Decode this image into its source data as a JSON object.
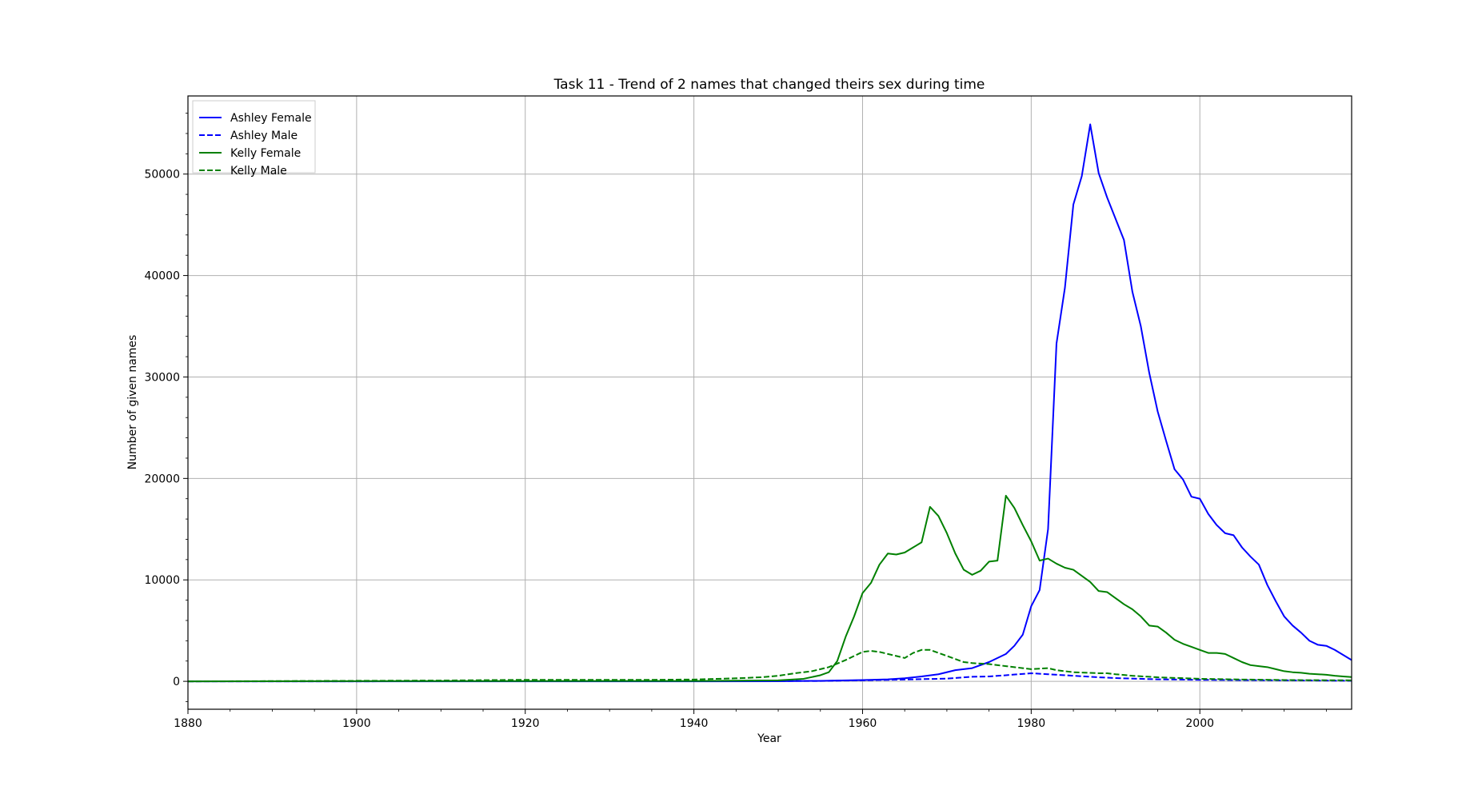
{
  "chart_data": {
    "type": "line",
    "title": "Task 11 - Trend of 2 names that changed theirs sex during time",
    "xlabel": "Year",
    "ylabel": "Number of given names",
    "xlim": [
      1880,
      2018
    ],
    "ylim": [
      -2750,
      57700
    ],
    "xticks": [
      1880,
      1900,
      1920,
      1940,
      1960,
      1980,
      2000
    ],
    "xtick_labels": [
      "1880",
      "1900",
      "1920",
      "1940",
      "1960",
      "1980",
      "2000"
    ],
    "yticks": [
      0,
      10000,
      20000,
      30000,
      40000,
      50000
    ],
    "ytick_labels": [
      "0",
      "10000",
      "20000",
      "30000",
      "40000",
      "50000"
    ],
    "grid": true,
    "legend_position": "upper-left",
    "series": [
      {
        "name": "Ashley Female",
        "color": "#0000ff",
        "dash": "solid",
        "points": [
          [
            1880,
            0
          ],
          [
            1940,
            0
          ],
          [
            1950,
            10
          ],
          [
            1955,
            50
          ],
          [
            1960,
            130
          ],
          [
            1963,
            200
          ],
          [
            1965,
            300
          ],
          [
            1967,
            480
          ],
          [
            1969,
            700
          ],
          [
            1971,
            1100
          ],
          [
            1973,
            1300
          ],
          [
            1975,
            1900
          ],
          [
            1977,
            2700
          ],
          [
            1978,
            3500
          ],
          [
            1979,
            4600
          ],
          [
            1980,
            7400
          ],
          [
            1981,
            9000
          ],
          [
            1982,
            15000
          ],
          [
            1983,
            33300
          ],
          [
            1984,
            38800
          ],
          [
            1985,
            47000
          ],
          [
            1986,
            49800
          ],
          [
            1987,
            54900
          ],
          [
            1988,
            50100
          ],
          [
            1989,
            47700
          ],
          [
            1990,
            45600
          ],
          [
            1991,
            43500
          ],
          [
            1992,
            38400
          ],
          [
            1993,
            35000
          ],
          [
            1994,
            30400
          ],
          [
            1995,
            26600
          ],
          [
            1996,
            23700
          ],
          [
            1997,
            20900
          ],
          [
            1998,
            19900
          ],
          [
            1999,
            18200
          ],
          [
            2000,
            18000
          ],
          [
            2001,
            16500
          ],
          [
            2002,
            15400
          ],
          [
            2003,
            14600
          ],
          [
            2004,
            14400
          ],
          [
            2005,
            13200
          ],
          [
            2006,
            12300
          ],
          [
            2007,
            11500
          ],
          [
            2008,
            9500
          ],
          [
            2009,
            7900
          ],
          [
            2010,
            6400
          ],
          [
            2011,
            5500
          ],
          [
            2012,
            4800
          ],
          [
            2013,
            4000
          ],
          [
            2014,
            3600
          ],
          [
            2015,
            3500
          ],
          [
            2016,
            3100
          ],
          [
            2017,
            2600
          ],
          [
            2018,
            2100
          ]
        ]
      },
      {
        "name": "Ashley Male",
        "color": "#0000ff",
        "dash": "dashed",
        "points": [
          [
            1880,
            0
          ],
          [
            1940,
            10
          ],
          [
            1955,
            40
          ],
          [
            1960,
            100
          ],
          [
            1965,
            180
          ],
          [
            1970,
            270
          ],
          [
            1973,
            450
          ],
          [
            1975,
            480
          ],
          [
            1977,
            600
          ],
          [
            1980,
            800
          ],
          [
            1982,
            700
          ],
          [
            1985,
            550
          ],
          [
            1988,
            400
          ],
          [
            1990,
            320
          ],
          [
            1995,
            200
          ],
          [
            2000,
            150
          ],
          [
            2005,
            120
          ],
          [
            2010,
            100
          ],
          [
            2018,
            60
          ]
        ]
      },
      {
        "name": "Kelly Female",
        "color": "#008000",
        "dash": "solid",
        "points": [
          [
            1880,
            0
          ],
          [
            1910,
            30
          ],
          [
            1940,
            40
          ],
          [
            1950,
            100
          ],
          [
            1953,
            250
          ],
          [
            1955,
            600
          ],
          [
            1956,
            900
          ],
          [
            1957,
            2000
          ],
          [
            1958,
            4400
          ],
          [
            1959,
            6400
          ],
          [
            1960,
            8700
          ],
          [
            1961,
            9700
          ],
          [
            1962,
            11500
          ],
          [
            1963,
            12600
          ],
          [
            1964,
            12500
          ],
          [
            1965,
            12700
          ],
          [
            1966,
            13200
          ],
          [
            1967,
            13700
          ],
          [
            1968,
            17200
          ],
          [
            1969,
            16300
          ],
          [
            1970,
            14600
          ],
          [
            1971,
            12600
          ],
          [
            1972,
            11000
          ],
          [
            1973,
            10500
          ],
          [
            1974,
            10900
          ],
          [
            1975,
            11800
          ],
          [
            1976,
            11900
          ],
          [
            1977,
            18300
          ],
          [
            1978,
            17100
          ],
          [
            1979,
            15400
          ],
          [
            1980,
            13800
          ],
          [
            1981,
            11900
          ],
          [
            1982,
            12100
          ],
          [
            1983,
            11600
          ],
          [
            1984,
            11200
          ],
          [
            1985,
            11000
          ],
          [
            1986,
            10400
          ],
          [
            1987,
            9800
          ],
          [
            1988,
            8900
          ],
          [
            1989,
            8800
          ],
          [
            1990,
            8200
          ],
          [
            1991,
            7600
          ],
          [
            1992,
            7100
          ],
          [
            1993,
            6400
          ],
          [
            1994,
            5500
          ],
          [
            1995,
            5400
          ],
          [
            1996,
            4800
          ],
          [
            1997,
            4100
          ],
          [
            1998,
            3700
          ],
          [
            1999,
            3400
          ],
          [
            2000,
            3100
          ],
          [
            2001,
            2800
          ],
          [
            2002,
            2800
          ],
          [
            2003,
            2700
          ],
          [
            2004,
            2300
          ],
          [
            2005,
            1900
          ],
          [
            2006,
            1600
          ],
          [
            2007,
            1500
          ],
          [
            2008,
            1400
          ],
          [
            2009,
            1200
          ],
          [
            2010,
            1000
          ],
          [
            2011,
            900
          ],
          [
            2012,
            850
          ],
          [
            2013,
            750
          ],
          [
            2014,
            700
          ],
          [
            2015,
            650
          ],
          [
            2016,
            550
          ],
          [
            2017,
            480
          ],
          [
            2018,
            420
          ]
        ]
      },
      {
        "name": "Kelly Male",
        "color": "#008000",
        "dash": "dashed",
        "points": [
          [
            1880,
            0
          ],
          [
            1910,
            80
          ],
          [
            1920,
            150
          ],
          [
            1935,
            150
          ],
          [
            1940,
            180
          ],
          [
            1945,
            300
          ],
          [
            1948,
            400
          ],
          [
            1950,
            550
          ],
          [
            1952,
            800
          ],
          [
            1954,
            1000
          ],
          [
            1956,
            1400
          ],
          [
            1958,
            2100
          ],
          [
            1959,
            2500
          ],
          [
            1960,
            2900
          ],
          [
            1961,
            3000
          ],
          [
            1962,
            2900
          ],
          [
            1963,
            2700
          ],
          [
            1964,
            2500
          ],
          [
            1965,
            2300
          ],
          [
            1966,
            2800
          ],
          [
            1967,
            3100
          ],
          [
            1968,
            3100
          ],
          [
            1969,
            2800
          ],
          [
            1970,
            2500
          ],
          [
            1971,
            2200
          ],
          [
            1972,
            1900
          ],
          [
            1973,
            1800
          ],
          [
            1975,
            1700
          ],
          [
            1977,
            1500
          ],
          [
            1979,
            1300
          ],
          [
            1980,
            1200
          ],
          [
            1982,
            1300
          ],
          [
            1983,
            1100
          ],
          [
            1985,
            900
          ],
          [
            1988,
            800
          ],
          [
            1989,
            800
          ],
          [
            1990,
            700
          ],
          [
            1992,
            550
          ],
          [
            1995,
            400
          ],
          [
            2000,
            250
          ],
          [
            2005,
            180
          ],
          [
            2010,
            130
          ],
          [
            2018,
            100
          ]
        ]
      }
    ]
  }
}
